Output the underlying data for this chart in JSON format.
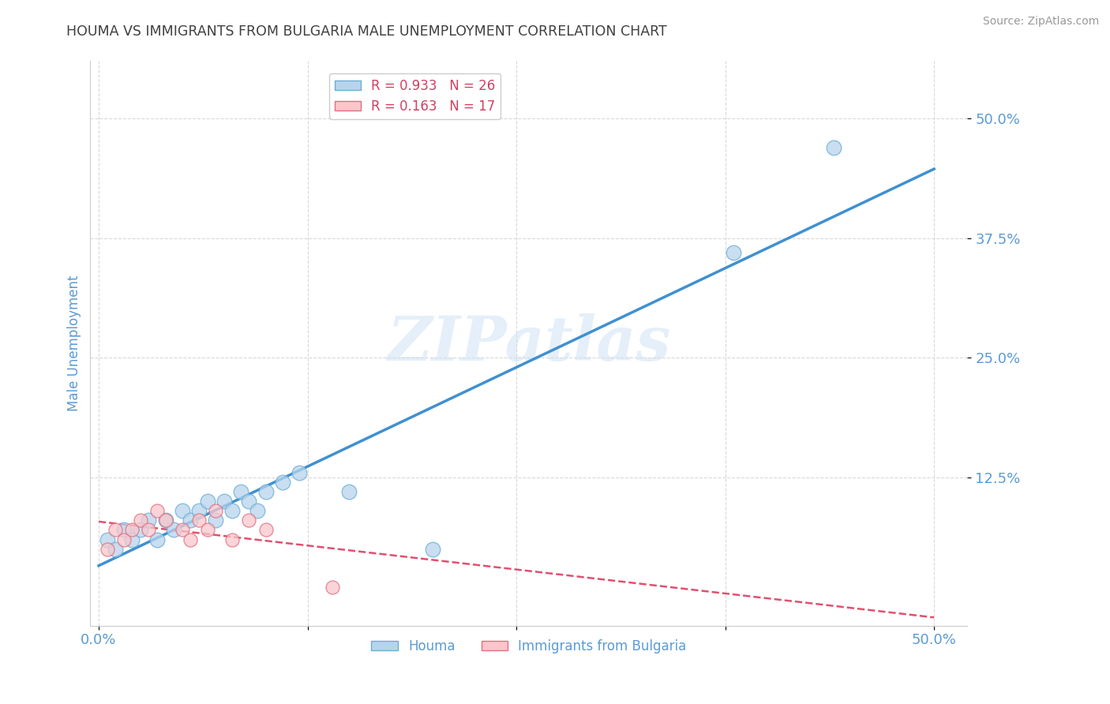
{
  "title": "HOUMA VS IMMIGRANTS FROM BULGARIA MALE UNEMPLOYMENT CORRELATION CHART",
  "source_text": "Source: ZipAtlas.com",
  "ylabel": "Male Unemployment",
  "watermark": "ZIPatlas",
  "xlim": [
    -0.005,
    0.52
  ],
  "ylim": [
    -0.03,
    0.56
  ],
  "xticks": [
    0.0,
    0.125,
    0.25,
    0.375,
    0.5
  ],
  "xtick_labels": [
    "0.0%",
    "",
    "",
    "",
    "50.0%"
  ],
  "ytick_labels": [
    "12.5%",
    "25.0%",
    "37.5%",
    "50.0%"
  ],
  "yticks": [
    0.125,
    0.25,
    0.375,
    0.5
  ],
  "legend_entries": [
    {
      "label": "R = 0.933   N = 26",
      "color": "#a8c4e0"
    },
    {
      "label": "R = 0.163   N = 17",
      "color": "#f4b8c1"
    }
  ],
  "houma_x": [
    0.005,
    0.01,
    0.015,
    0.02,
    0.025,
    0.03,
    0.035,
    0.04,
    0.045,
    0.05,
    0.055,
    0.06,
    0.065,
    0.07,
    0.075,
    0.08,
    0.085,
    0.09,
    0.095,
    0.1,
    0.11,
    0.12,
    0.15,
    0.2,
    0.38,
    0.44
  ],
  "houma_y": [
    0.06,
    0.05,
    0.07,
    0.06,
    0.07,
    0.08,
    0.06,
    0.08,
    0.07,
    0.09,
    0.08,
    0.09,
    0.1,
    0.08,
    0.1,
    0.09,
    0.11,
    0.1,
    0.09,
    0.11,
    0.12,
    0.13,
    0.11,
    0.05,
    0.36,
    0.47
  ],
  "bulgaria_x": [
    0.005,
    0.01,
    0.015,
    0.02,
    0.025,
    0.03,
    0.035,
    0.04,
    0.05,
    0.055,
    0.06,
    0.065,
    0.07,
    0.08,
    0.09,
    0.1,
    0.14
  ],
  "bulgaria_y": [
    0.05,
    0.07,
    0.06,
    0.07,
    0.08,
    0.07,
    0.09,
    0.08,
    0.07,
    0.06,
    0.08,
    0.07,
    0.09,
    0.06,
    0.08,
    0.07,
    0.01
  ],
  "houma_color": "#b8d4ed",
  "houma_edge_color": "#6baed6",
  "bulgaria_color": "#f9c6cb",
  "bulgaria_edge_color": "#e07080",
  "trend_houma_color": "#4090d0",
  "trend_bulgaria_color": "#e05070",
  "background_color": "#ffffff",
  "grid_color": "#d0d0d0",
  "title_color": "#404040",
  "axis_label_color": "#5b9bd5",
  "tick_color": "#5b9bd5",
  "source_color": "#999999"
}
